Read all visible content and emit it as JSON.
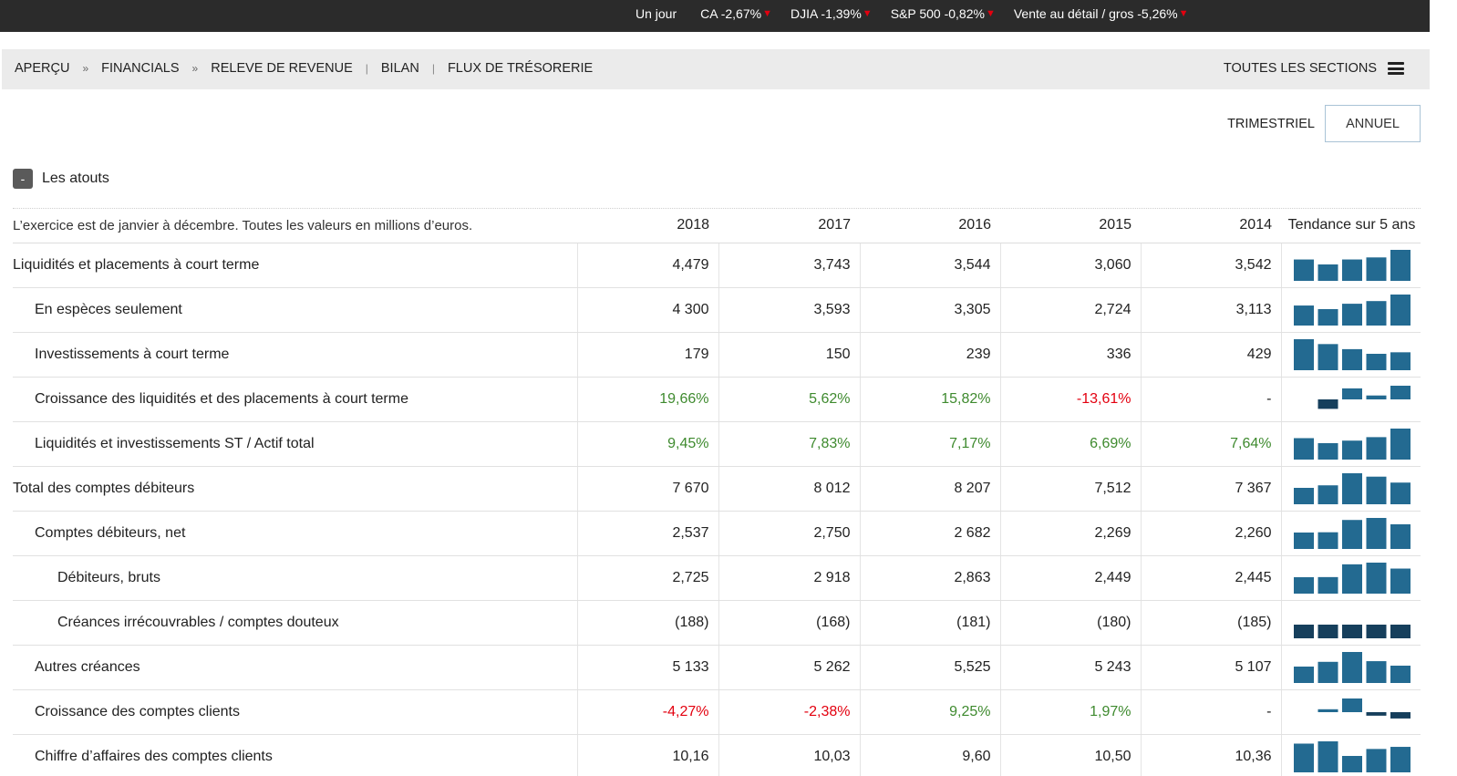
{
  "ticker": {
    "label": "Un jour",
    "items": [
      {
        "text": "CA -2,67%"
      },
      {
        "text": "DJIA -1,39%"
      },
      {
        "text": "S&P 500 -0,82%"
      },
      {
        "text": "Vente au détail / gros -5,26%"
      }
    ],
    "down_icon": "down-triangle-icon",
    "down_color": "#e3000f"
  },
  "nav": {
    "crumbs": [
      "APERÇU",
      "FINANCIALS",
      "RELEVE DE REVENUE",
      "BILAN",
      "FLUX DE TRÉSORERIE"
    ],
    "all_sections": "TOUTES LES SECTIONS",
    "menu_icon": "hamburger-icon"
  },
  "period": {
    "quarterly": "TRIMESTRIEL",
    "annual": "ANNUEL",
    "selected": "ANNUEL"
  },
  "section": {
    "title": "Les atouts",
    "toggle": "-"
  },
  "table": {
    "note": "L’exercice est de janvier à décembre. Toutes les valeurs en millions d’euros.",
    "years": [
      "2018",
      "2017",
      "2016",
      "2015",
      "2014"
    ],
    "trend_header": "Tendance sur 5 ans",
    "colors": {
      "bar": "#236a91",
      "bar_dark": "#163f5c",
      "pos": "#3e8a2e",
      "neg": "#e3000f"
    },
    "rows": [
      {
        "label": "Liquidités et placements à court terme",
        "level": 0,
        "values": [
          "4,479",
          "3,743",
          "3,544",
          "3,060",
          "3,542"
        ],
        "trend": [
          3542,
          3060,
          3544,
          3743,
          4479
        ]
      },
      {
        "label": "En espèces seulement",
        "level": 1,
        "values": [
          "4 300",
          "3,593",
          "3,305",
          "2,724",
          "3,113"
        ],
        "trend": [
          3113,
          2724,
          3305,
          3593,
          4300
        ]
      },
      {
        "label": "Investissements à court terme",
        "level": 1,
        "values": [
          "179",
          "150",
          "239",
          "336",
          "429"
        ],
        "trend": [
          429,
          336,
          239,
          150,
          179
        ]
      },
      {
        "label": "Croissance des liquidités et des placements à court terme",
        "level": 1,
        "values": [
          "19,66%",
          "5,62%",
          "15,82%",
          "-13,61%",
          "-"
        ],
        "growth": true,
        "trend": [
          0,
          -13.61,
          15.82,
          5.62,
          19.66
        ]
      },
      {
        "label": "Liquidités et investissements ST / Actif total",
        "level": 1,
        "values": [
          "9,45%",
          "7,83%",
          "7,17%",
          "6,69%",
          "7,64%"
        ],
        "trend": [
          7.64,
          6.69,
          7.17,
          7.83,
          9.45
        ]
      },
      {
        "label": "Total des comptes débiteurs",
        "level": 0,
        "values": [
          "7 670",
          "8 012",
          "8 207",
          "7,512",
          "7 367"
        ],
        "trend": [
          7367,
          7512,
          8207,
          8012,
          7670
        ]
      },
      {
        "label": "Comptes débiteurs, net",
        "level": 1,
        "values": [
          "2,537",
          "2,750",
          "2 682",
          "2,269",
          "2,260"
        ],
        "trend": [
          2260,
          2269,
          2682,
          2750,
          2537
        ]
      },
      {
        "label": "Débiteurs, bruts",
        "level": 2,
        "values": [
          "2,725",
          "2 918",
          "2,863",
          "2,449",
          "2,445"
        ],
        "trend": [
          2445,
          2449,
          2863,
          2918,
          2725
        ]
      },
      {
        "label": "Créances irrécouvrables / comptes douteux",
        "level": 2,
        "values": [
          "(188)",
          "(168)",
          "(181)",
          "(180)",
          "(185)"
        ],
        "flat": true,
        "trend": [
          185,
          180,
          181,
          168,
          188
        ]
      },
      {
        "label": "Autres créances",
        "level": 1,
        "values": [
          "5 133",
          "5 262",
          "5,525",
          "5 243",
          "5 107"
        ],
        "trend": [
          5107,
          5243,
          5525,
          5262,
          5133
        ]
      },
      {
        "label": "Croissance des comptes clients",
        "level": 1,
        "values": [
          "-4,27%",
          "-2,38%",
          "9,25%",
          "1,97%",
          "-"
        ],
        "growth": true,
        "trend": [
          0,
          1.97,
          9.25,
          -2.38,
          -4.27
        ]
      },
      {
        "label": "Chiffre d’affaires des comptes clients",
        "level": 1,
        "values": [
          "10,16",
          "10,03",
          "9,60",
          "10,50",
          "10,36"
        ],
        "trend": [
          10.36,
          10.5,
          9.6,
          10.03,
          10.16
        ]
      }
    ]
  }
}
